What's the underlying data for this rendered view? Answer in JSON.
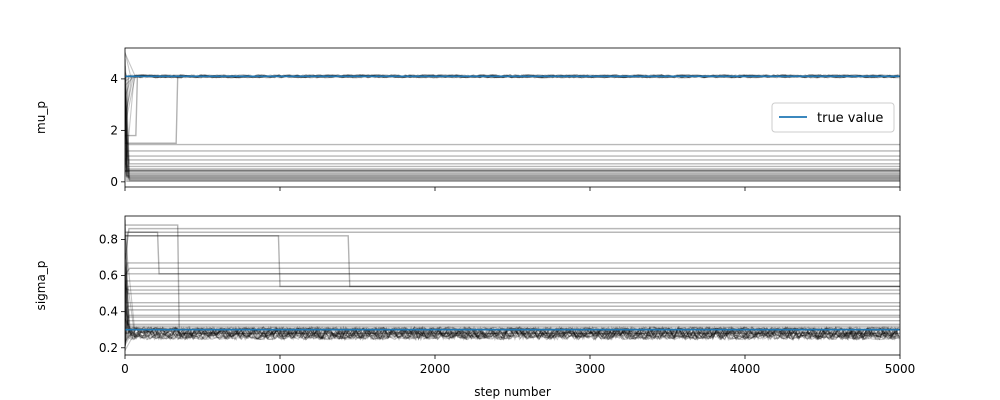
{
  "chart_data": {
    "type": "line",
    "colors": {
      "trace": "#000000",
      "true_value": "#1f77b4",
      "frame": "#000000"
    },
    "xlabel": "step number",
    "x_ticks": [
      0,
      1000,
      2000,
      3000,
      4000,
      5000
    ],
    "xlim": [
      0,
      5000
    ],
    "legend": {
      "placement": "right",
      "entries": [
        "true value"
      ]
    },
    "panels": [
      {
        "ylabel": "mu_p",
        "ylim": [
          -0.2,
          5.2
        ],
        "y_ticks": [
          0,
          2,
          4
        ],
        "true_value": 4.1,
        "converged_level": 4.1,
        "walker_levels": [
          0.02,
          0.05,
          0.08,
          0.12,
          0.15,
          0.18,
          0.22,
          0.25,
          0.3,
          0.35,
          0.42,
          0.5,
          0.6,
          0.7,
          0.85,
          1.0,
          1.2,
          1.45
        ],
        "late_jumps": [
          {
            "step": 330,
            "from": 1.5,
            "to": 4.1
          },
          {
            "step": 70,
            "from": 1.8,
            "to": 4.1
          },
          {
            "step": 990,
            "from": 0.45,
            "to": 0.45
          },
          {
            "step": 1440,
            "from": 0.42,
            "to": 0.42
          }
        ]
      },
      {
        "ylabel": "sigma_p",
        "ylim": [
          0.16,
          0.93
        ],
        "y_ticks": [
          0.2,
          0.4,
          0.6,
          0.8
        ],
        "true_value": 0.3,
        "converged_level": 0.28,
        "walker_levels": [
          0.3,
          0.31,
          0.32,
          0.33,
          0.35,
          0.37,
          0.38,
          0.41,
          0.43,
          0.45,
          0.5,
          0.52,
          0.54,
          0.57,
          0.61,
          0.64,
          0.67,
          0.84,
          0.86
        ],
        "late_jumps": [
          {
            "step": 340,
            "from": 0.88,
            "to": 0.28
          },
          {
            "step": 990,
            "from": 0.82,
            "to": 0.54
          },
          {
            "step": 1440,
            "from": 0.82,
            "to": 0.54
          },
          {
            "step": 210,
            "from": 0.84,
            "to": 0.61
          }
        ]
      }
    ]
  }
}
